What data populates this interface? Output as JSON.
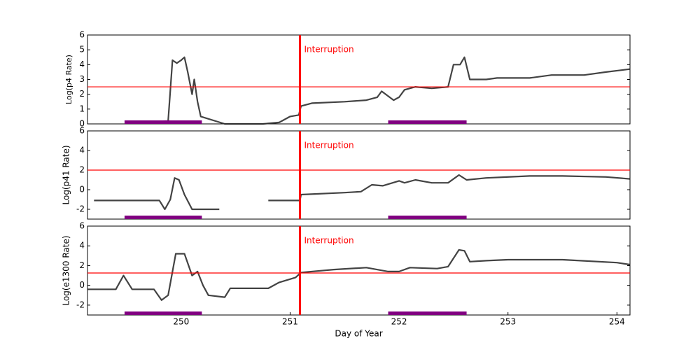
{
  "chart_data": [
    {
      "type": "line",
      "ylabel": "Log(p4 Rate)",
      "xlim": [
        249.14,
        254.12
      ],
      "ylim": [
        0,
        6
      ],
      "yticks": [
        0,
        1,
        2,
        3,
        4,
        5,
        6
      ],
      "threshold": 2.5,
      "threshold_color": "#ff0000",
      "annotation": {
        "x": 251.09,
        "text": "Interruption",
        "color": "#ff0000"
      },
      "intervals": [
        [
          249.48,
          250.19
        ],
        [
          251.9,
          252.62
        ]
      ],
      "interval_color": "#800080",
      "series": [
        {
          "color": "#222222",
          "x": [
            249.5,
            249.88,
            249.92,
            249.96,
            250.0,
            250.03,
            250.06,
            250.1,
            250.12,
            250.15,
            250.18,
            250.4,
            250.75,
            250.9,
            251.0,
            251.08,
            251.1,
            251.2,
            251.5,
            251.7,
            251.8,
            251.84,
            251.95,
            252.0,
            252.05,
            252.15,
            252.3,
            252.45,
            252.5,
            252.56,
            252.6,
            252.65,
            252.8,
            252.9,
            253.2,
            253.4,
            253.7,
            253.9,
            254.12
          ],
          "values": [
            0.1,
            0.2,
            4.3,
            4.1,
            4.3,
            4.5,
            3.5,
            2.0,
            3.0,
            1.5,
            0.5,
            0.0,
            0.0,
            0.1,
            0.5,
            0.6,
            1.2,
            1.4,
            1.5,
            1.6,
            1.8,
            2.2,
            1.6,
            1.8,
            2.3,
            2.5,
            2.4,
            2.5,
            4.0,
            4.0,
            4.5,
            3.0,
            3.0,
            3.1,
            3.1,
            3.3,
            3.3,
            3.5,
            3.7
          ]
        }
      ]
    },
    {
      "type": "line",
      "ylabel": "Log(p41 Rate)",
      "xlim": [
        249.14,
        254.12
      ],
      "ylim": [
        -3,
        6
      ],
      "yticks": [
        -2,
        0,
        2,
        4,
        6
      ],
      "threshold": 2.0,
      "threshold_color": "#ff0000",
      "annotation": {
        "x": 251.09,
        "text": "Interruption",
        "color": "#ff0000"
      },
      "intervals": [
        [
          249.48,
          250.19
        ],
        [
          251.9,
          252.62
        ]
      ],
      "interval_color": "#800080",
      "series": [
        {
          "color": "#222222",
          "x": [
            249.2,
            249.5,
            249.8,
            249.85,
            249.9,
            249.94,
            249.98,
            250.03,
            250.1,
            250.2,
            250.35,
            250.4,
            250.8,
            251.09,
            251.1,
            251.5,
            251.65,
            251.75,
            251.85,
            252.0,
            252.05,
            252.15,
            252.3,
            252.45,
            252.55,
            252.62,
            252.8,
            253.2,
            253.5,
            253.9,
            254.12
          ],
          "values": [
            -1.1,
            -1.1,
            -1.1,
            -2.0,
            -1.0,
            1.2,
            1.0,
            -0.5,
            -2.0,
            -2.0,
            -2.0,
            null,
            -1.1,
            -1.1,
            -0.5,
            -0.3,
            -0.2,
            0.5,
            0.4,
            0.9,
            0.7,
            1.0,
            0.7,
            0.7,
            1.5,
            1.0,
            1.2,
            1.4,
            1.4,
            1.3,
            1.1
          ]
        }
      ]
    },
    {
      "type": "line",
      "ylabel": "Log(e1300 Rate)",
      "xlabel": "Day of Year",
      "xlim": [
        249.14,
        254.12
      ],
      "ylim": [
        -3,
        6
      ],
      "yticks": [
        -2,
        0,
        2,
        4,
        6
      ],
      "xticks": [
        250,
        251,
        252,
        253,
        254
      ],
      "threshold": 1.25,
      "threshold_color": "#ff0000",
      "annotation": {
        "x": 251.09,
        "text": "Interruption",
        "color": "#ff0000"
      },
      "intervals": [
        [
          249.48,
          250.19
        ],
        [
          251.9,
          252.62
        ]
      ],
      "interval_color": "#800080",
      "series": [
        {
          "color": "#222222",
          "x": [
            249.14,
            249.4,
            249.47,
            249.55,
            249.75,
            249.82,
            249.88,
            249.95,
            250.03,
            250.1,
            250.15,
            250.2,
            250.25,
            250.4,
            250.45,
            250.8,
            250.9,
            251.05,
            251.1,
            251.4,
            251.7,
            251.9,
            252.0,
            252.1,
            252.35,
            252.45,
            252.55,
            252.6,
            252.65,
            252.8,
            253.0,
            253.5,
            254.0,
            254.12
          ],
          "values": [
            -0.4,
            -0.4,
            1.0,
            -0.4,
            -0.4,
            -1.5,
            -1.0,
            3.2,
            3.2,
            1.0,
            1.4,
            0.0,
            -1.0,
            -1.2,
            -0.3,
            -0.3,
            0.3,
            0.8,
            1.3,
            1.6,
            1.8,
            1.4,
            1.4,
            1.8,
            1.7,
            1.9,
            3.6,
            3.5,
            2.4,
            2.5,
            2.6,
            2.6,
            2.3,
            2.1
          ]
        }
      ]
    }
  ]
}
